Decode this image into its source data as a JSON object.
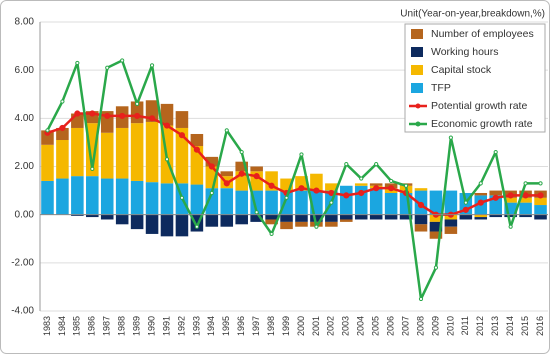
{
  "chart_data": {
    "type": "bar-line",
    "unit_label": "Unit(Year-on-year,breakdown,%)",
    "categories": [
      "1983",
      "1984",
      "1985",
      "1986",
      "1987",
      "1988",
      "1989",
      "1990",
      "1991",
      "1992",
      "1993",
      "1994",
      "1995",
      "1996",
      "1997",
      "1998",
      "1999",
      "2000",
      "2001",
      "2002",
      "2003",
      "2004",
      "2005",
      "2006",
      "2007",
      "2008",
      "2009",
      "2010",
      "2011",
      "2012",
      "2013",
      "2014",
      "2015",
      "2016"
    ],
    "series": [
      {
        "name": "Number of employees",
        "type": "bar",
        "color": "#b5651d",
        "values": [
          0.6,
          0.5,
          0.6,
          0.5,
          0.9,
          0.9,
          0.9,
          0.9,
          0.9,
          0.7,
          0.5,
          0.4,
          0.2,
          0.4,
          0.2,
          -0.2,
          -0.3,
          -0.2,
          -0.2,
          -0.2,
          -0.1,
          0.0,
          0.1,
          0.2,
          0.1,
          -0.3,
          -0.3,
          -0.3,
          0.0,
          0.1,
          0.2,
          0.3,
          0.3,
          0.3
        ]
      },
      {
        "name": "Working hours",
        "type": "bar",
        "color": "#0d2a5e",
        "values": [
          0.0,
          0.0,
          -0.05,
          -0.1,
          -0.2,
          -0.4,
          -0.6,
          -0.8,
          -0.9,
          -0.9,
          -0.7,
          -0.5,
          -0.5,
          -0.4,
          -0.3,
          -0.2,
          -0.3,
          -0.3,
          -0.3,
          -0.3,
          -0.2,
          -0.2,
          -0.2,
          -0.2,
          -0.2,
          -0.4,
          -0.4,
          -0.3,
          -0.2,
          -0.1,
          -0.1,
          -0.1,
          -0.1,
          -0.2
        ]
      },
      {
        "name": "Capital stock",
        "type": "bar",
        "color": "#f5b800",
        "values": [
          1.5,
          1.6,
          2.0,
          2.2,
          1.9,
          2.1,
          2.4,
          2.5,
          2.4,
          2.3,
          1.6,
          0.9,
          0.5,
          0.8,
          0.8,
          0.8,
          0.5,
          0.6,
          0.7,
          0.3,
          0.0,
          0.1,
          0.1,
          0.2,
          0.3,
          0.1,
          -0.3,
          -0.2,
          0.0,
          -0.1,
          0.0,
          0.2,
          0.2,
          0.3
        ]
      },
      {
        "name": "TFP",
        "type": "bar",
        "color": "#1ba6e0",
        "values": [
          1.4,
          1.5,
          1.6,
          1.6,
          1.5,
          1.5,
          1.4,
          1.35,
          1.3,
          1.3,
          1.25,
          1.1,
          1.1,
          1.0,
          1.0,
          1.0,
          1.0,
          1.0,
          1.0,
          1.0,
          1.2,
          1.2,
          1.1,
          0.9,
          0.9,
          1.0,
          1.0,
          1.0,
          0.9,
          0.8,
          0.8,
          0.5,
          0.5,
          0.4
        ]
      },
      {
        "name": "Potential growth rate",
        "type": "line",
        "color": "#e8211c",
        "values": [
          3.4,
          3.6,
          4.2,
          4.2,
          4.1,
          4.1,
          4.1,
          4.0,
          3.7,
          3.3,
          2.7,
          2.0,
          1.3,
          1.7,
          1.6,
          1.2,
          0.9,
          1.1,
          1.0,
          0.9,
          0.8,
          0.9,
          1.1,
          1.1,
          0.9,
          0.4,
          0.0,
          0.0,
          0.2,
          0.5,
          0.7,
          0.8,
          0.8,
          0.8
        ]
      },
      {
        "name": "Economic growth rate",
        "type": "line",
        "color": "#2aa84a",
        "values": [
          3.5,
          4.7,
          6.3,
          1.9,
          6.1,
          6.4,
          4.6,
          6.2,
          2.3,
          0.7,
          -0.5,
          0.9,
          3.5,
          2.6,
          0.1,
          -0.8,
          0.7,
          2.5,
          -0.5,
          0.5,
          2.1,
          1.5,
          2.1,
          1.4,
          1.2,
          -3.5,
          -2.2,
          3.2,
          0.5,
          1.3,
          2.6,
          -0.5,
          1.3,
          1.3
        ]
      }
    ],
    "ylim": [
      -4,
      8
    ],
    "yticks": [
      {
        "value": -4,
        "label": "-4.00"
      },
      {
        "value": -2,
        "label": "-2.00"
      },
      {
        "value": 0,
        "label": "0.00"
      },
      {
        "value": 2,
        "label": "2.00"
      },
      {
        "value": 4,
        "label": "4.00"
      },
      {
        "value": 6,
        "label": "6.00"
      },
      {
        "value": 8,
        "label": "8.00"
      }
    ],
    "grid": true
  }
}
